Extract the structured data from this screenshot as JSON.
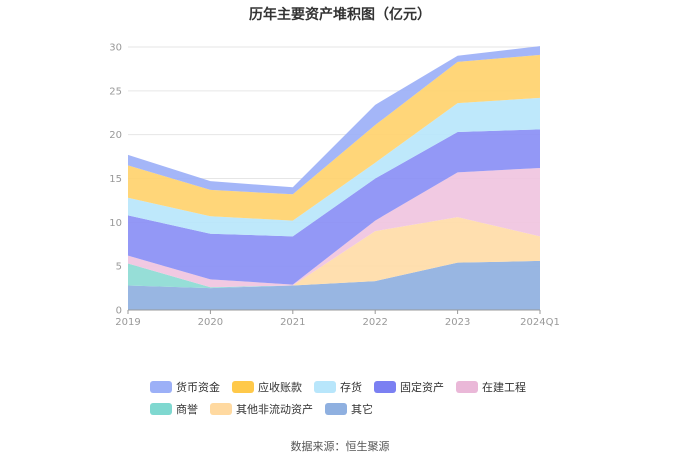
{
  "chart_data": {
    "type": "area",
    "stacked": true,
    "title": "历年主要资产堆积图（亿元）",
    "categories": [
      "2019",
      "2020",
      "2021",
      "2022",
      "2023",
      "2024Q1"
    ],
    "ylim": [
      0,
      30
    ],
    "yticks": [
      "0",
      "5",
      "10",
      "15",
      "20",
      "25",
      "30"
    ],
    "grid": true,
    "legend_position": "bottom",
    "series": [
      {
        "name": "其它",
        "color": "#8fb0e0",
        "values": [
          2.8,
          2.5,
          2.8,
          3.3,
          5.4,
          5.6
        ]
      },
      {
        "name": "其他非流动资产",
        "color": "#ffdca8",
        "values": [
          0.0,
          0.0,
          0.0,
          5.7,
          5.2,
          2.8
        ]
      },
      {
        "name": "商誉",
        "color": "#8ddbd4",
        "values": [
          2.5,
          0.1,
          0.0,
          0.0,
          0.0,
          0.0
        ]
      },
      {
        "name": "在建工程",
        "color": "#f0c4e0",
        "values": [
          0.9,
          0.9,
          0.1,
          1.2,
          5.1,
          7.8
        ]
      },
      {
        "name": "固定资产",
        "color": "#8a8ff5",
        "values": [
          4.6,
          5.2,
          5.5,
          4.8,
          4.6,
          4.4
        ]
      },
      {
        "name": "存货",
        "color": "#b8e6fb",
        "values": [
          2.0,
          2.0,
          1.8,
          1.8,
          3.3,
          3.6
        ]
      },
      {
        "name": "应收账款",
        "color": "#ffd36e",
        "values": [
          3.7,
          3.0,
          3.0,
          4.3,
          4.7,
          4.9
        ]
      },
      {
        "name": "货币资金",
        "color": "#9cb0f7",
        "values": [
          1.2,
          1.0,
          0.8,
          2.3,
          0.7,
          1.0
        ]
      }
    ],
    "legend_order": [
      "货币资金",
      "应收账款",
      "存货",
      "固定资产",
      "在建工程",
      "商誉",
      "其他非流动资产",
      "其它"
    ],
    "legend_colors": {
      "货币资金": "#9cb0f7",
      "应收账款": "#ffc94a",
      "存货": "#b8e6fb",
      "固定资产": "#7b80f2",
      "在建工程": "#eab8d8",
      "商誉": "#7fd8d0",
      "其他非流动资产": "#ffd9a0",
      "其它": "#8fb0e0"
    }
  },
  "footer": {
    "source": "数据来源：恒生聚源"
  }
}
